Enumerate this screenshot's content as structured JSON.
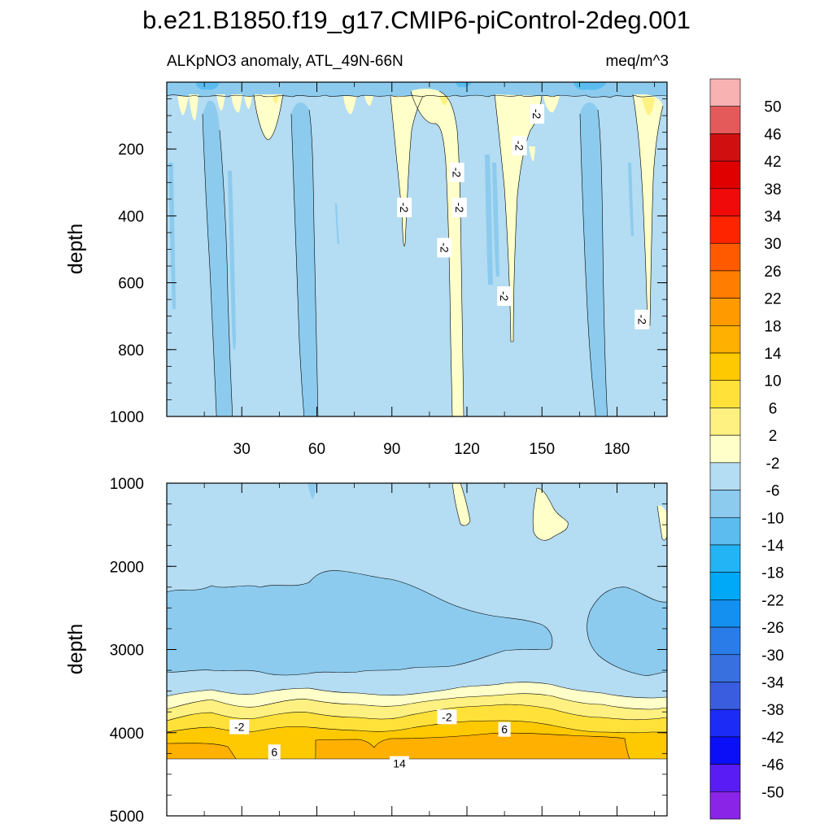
{
  "chart_data": {
    "type": "contour",
    "title": "b.e21.B1850.f19_g17.CMIP6-piControl-2deg.001",
    "left_subtitle": "ALKpNO3 anomaly, ATL_49N-66N",
    "right_subtitle": "meq/m^3",
    "x_ticks": [
      "30",
      "60",
      "90",
      "120",
      "150",
      "180"
    ],
    "x_tick_values": [
      30,
      60,
      90,
      120,
      150,
      180
    ],
    "xlim": [
      0,
      200
    ],
    "panels": [
      {
        "name": "upper-ocean",
        "ylabel": "depth",
        "ylim": [
          0,
          1000
        ],
        "y_ticks": [
          "200",
          "400",
          "600",
          "800",
          "1000"
        ],
        "y_tick_values": [
          200,
          400,
          600,
          800,
          1000
        ],
        "contour_labels": [
          {
            "text": "-2",
            "x": 148,
            "y": 95
          },
          {
            "text": "-2",
            "x": 141,
            "y": 190
          },
          {
            "text": "-2",
            "x": 116,
            "y": 270
          },
          {
            "text": "-2",
            "x": 95,
            "y": 375
          },
          {
            "text": "-2",
            "x": 117,
            "y": 375
          },
          {
            "text": "-2",
            "x": 111,
            "y": 495
          },
          {
            "text": "-2",
            "x": 135,
            "y": 640
          },
          {
            "text": "-2",
            "x": 190,
            "y": 710
          }
        ]
      },
      {
        "name": "deep-ocean",
        "ylabel": "depth",
        "ylim": [
          1000,
          5000
        ],
        "y_ticks": [
          "1000",
          "2000",
          "3000",
          "4000",
          "5000"
        ],
        "y_tick_values": [
          1000,
          2000,
          3000,
          4000,
          5000
        ],
        "contour_labels": [
          {
            "text": "-2",
            "x": 29,
            "y": 3930
          },
          {
            "text": "-2",
            "x": 112,
            "y": 3810
          },
          {
            "text": "6",
            "x": 135,
            "y": 3960
          },
          {
            "text": "6",
            "x": 43,
            "y": 4230
          },
          {
            "text": "14",
            "x": 93,
            "y": 4370
          }
        ]
      }
    ],
    "colorbar": {
      "labels": [
        "50",
        "46",
        "42",
        "38",
        "34",
        "30",
        "26",
        "22",
        "18",
        "14",
        "10",
        "6",
        "2",
        "-2",
        "-6",
        "-10",
        "-14",
        "-18",
        "-22",
        "-26",
        "-30",
        "-34",
        "-38",
        "-42",
        "-46",
        "-50"
      ],
      "colors": [
        "#f9b2b2",
        "#e45a5a",
        "#d01010",
        "#e00000",
        "#f00a0a",
        "#ff2400",
        "#ff5a00",
        "#ff7d00",
        "#ff9a00",
        "#ffb000",
        "#ffc900",
        "#ffe13a",
        "#fff181",
        "#ffffc9",
        "#b4dcf2",
        "#8ccbee",
        "#5cbcf0",
        "#23b4f5",
        "#00a8f8",
        "#1490f0",
        "#2a7ce8",
        "#3870e0",
        "#3a5de0",
        "#1c2bf5",
        "#0a0ff8",
        "#5a1cf5",
        "#8a24e6"
      ]
    },
    "fill_colors": {
      "b_-10": "#8ccbee",
      "b_-6": "#b4dcf2",
      "b_-2": "#ffffc9",
      "b_2": "#fff181",
      "b_6": "#ffe13a",
      "b_10": "#ffc900",
      "b_14": "#ffb000",
      "b_-14": "#5cbcf0"
    }
  }
}
